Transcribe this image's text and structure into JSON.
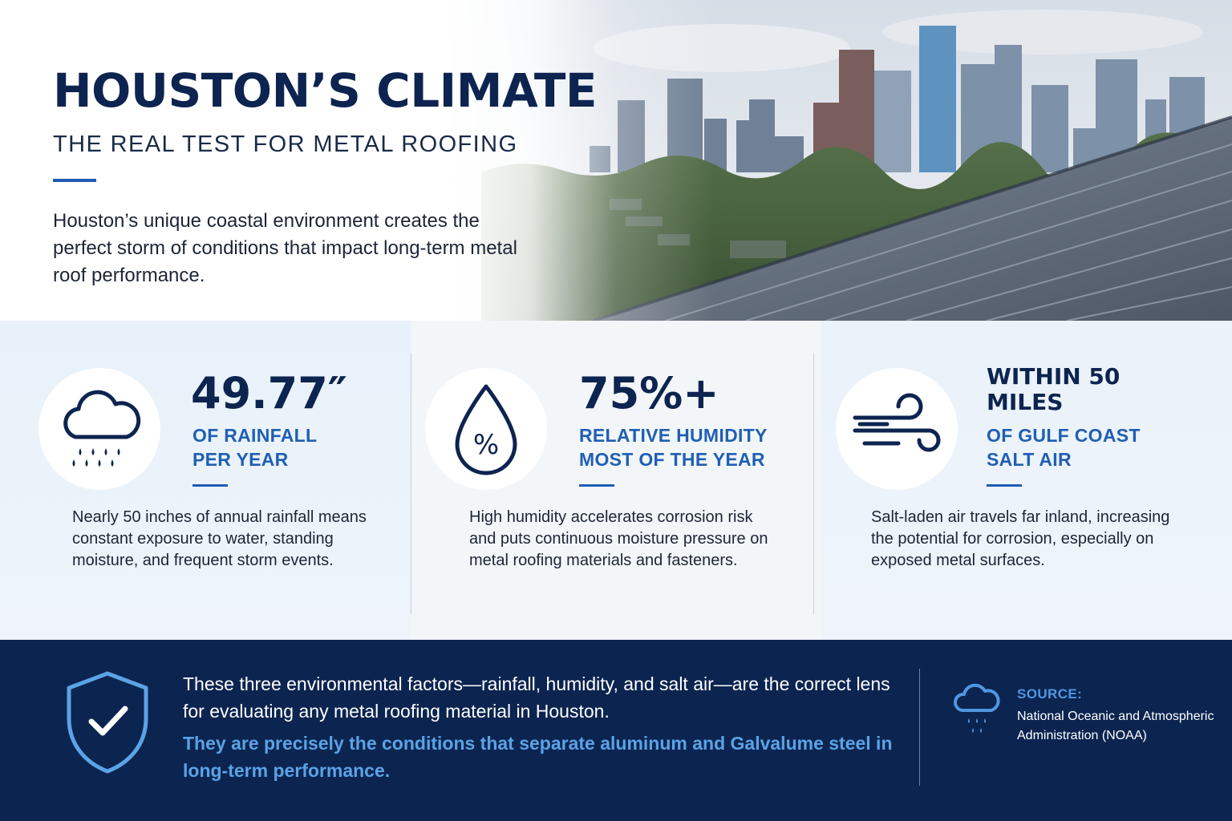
{
  "hero": {
    "title": "HOUSTON’S CLIMATE",
    "subtitle": "THE REAL TEST FOR METAL ROOFING",
    "description": "Houston’s unique coastal environment creates the perfect storm of conditions that impact long-term metal roof performance."
  },
  "stats": [
    {
      "icon": "rain-cloud-icon",
      "value": "49.77″",
      "label_line1": "OF RAINFALL",
      "label_line2": "PER YEAR",
      "description": "Nearly 50 inches of annual rainfall means constant exposure to water, standing moisture, and frequent storm events."
    },
    {
      "icon": "humidity-drop-icon",
      "value": "75%+",
      "label_line1": "RELATIVE HUMIDITY",
      "label_line2": "MOST OF THE YEAR",
      "description": "High humidity accelerates corrosion risk and puts continuous moisture pressure on metal roofing materials and fasteners."
    },
    {
      "icon": "wind-icon",
      "value_line1": "WITHIN  50",
      "value_line2": "MILES",
      "label_line1": "OF GULF COAST",
      "label_line2": "SALT AIR",
      "description": "Salt-laden air travels far inland, increasing the potential for corrosion, especially on exposed metal surfaces."
    }
  ],
  "footer": {
    "statement": "These three environmental factors—rainfall, humidity, and salt air—are the correct lens for evaluating any metal roofing material in Houston.",
    "highlight": "They are precisely the conditions that separate aluminum and Galvalume steel in long-term performance.",
    "source_label": "SOURCE:",
    "source_text": "National Oceanic and Atmospheric Administration (NOAA)"
  },
  "colors": {
    "navy": "#0c2450",
    "accent_blue": "#1e5bb5",
    "highlight_blue": "#5aa3e6",
    "stat_bg": "#eaf2fa"
  }
}
